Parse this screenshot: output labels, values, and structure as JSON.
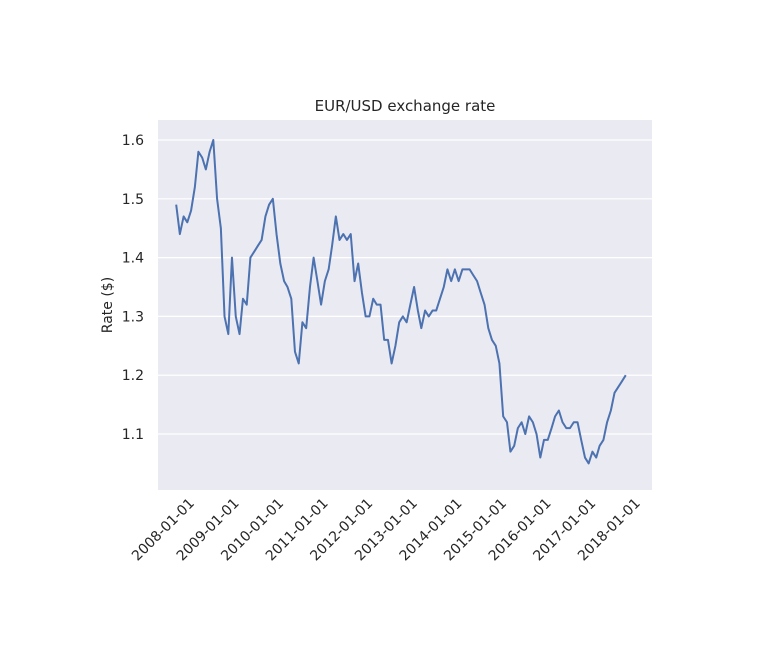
{
  "chart_data": {
    "type": "line",
    "title": "EUR/USD exchange rate",
    "y_label": "Rate ($)",
    "color": "#4c72b0",
    "grid": true,
    "x": [
      "2007-09-01",
      "2007-10-01",
      "2007-11-01",
      "2007-12-01",
      "2008-01-01",
      "2008-02-01",
      "2008-03-01",
      "2008-04-01",
      "2008-05-01",
      "2008-06-01",
      "2008-07-01",
      "2008-08-01",
      "2008-09-01",
      "2008-10-01",
      "2008-11-01",
      "2008-12-01",
      "2009-01-01",
      "2009-02-01",
      "2009-03-01",
      "2009-04-01",
      "2009-05-01",
      "2009-06-01",
      "2009-07-01",
      "2009-08-01",
      "2009-09-01",
      "2009-10-01",
      "2009-11-01",
      "2009-12-01",
      "2010-01-01",
      "2010-02-01",
      "2010-03-01",
      "2010-04-01",
      "2010-05-01",
      "2010-06-01",
      "2010-07-01",
      "2010-08-01",
      "2010-09-01",
      "2010-10-01",
      "2010-11-01",
      "2010-12-01",
      "2011-01-01",
      "2011-02-01",
      "2011-03-01",
      "2011-04-01",
      "2011-05-01",
      "2011-06-01",
      "2011-07-01",
      "2011-08-01",
      "2011-09-01",
      "2011-10-01",
      "2011-11-01",
      "2011-12-01",
      "2012-01-01",
      "2012-02-01",
      "2012-03-01",
      "2012-04-01",
      "2012-05-01",
      "2012-06-01",
      "2012-07-01",
      "2012-08-01",
      "2012-09-01",
      "2012-10-01",
      "2012-11-01",
      "2012-12-01",
      "2013-01-01",
      "2013-02-01",
      "2013-03-01",
      "2013-04-01",
      "2013-05-01",
      "2013-06-01",
      "2013-07-01",
      "2013-08-01",
      "2013-09-01",
      "2013-10-01",
      "2013-11-01",
      "2013-12-01",
      "2014-01-01",
      "2014-02-01",
      "2014-03-01",
      "2014-04-01",
      "2014-05-01",
      "2014-06-01",
      "2014-07-01",
      "2014-08-01",
      "2014-09-01",
      "2014-10-01",
      "2014-11-01",
      "2014-12-01",
      "2015-01-01",
      "2015-02-01",
      "2015-03-01",
      "2015-04-01",
      "2015-05-01",
      "2015-06-01",
      "2015-07-01",
      "2015-08-01",
      "2015-09-01",
      "2015-10-01",
      "2015-11-01",
      "2015-12-01",
      "2016-01-01",
      "2016-02-01",
      "2016-03-01",
      "2016-04-01",
      "2016-05-01",
      "2016-06-01",
      "2016-07-01",
      "2016-08-01",
      "2016-09-01",
      "2016-10-01",
      "2016-11-01",
      "2016-12-01",
      "2017-01-01",
      "2017-02-01",
      "2017-03-01",
      "2017-04-01",
      "2017-05-01",
      "2017-06-01",
      "2017-07-01",
      "2017-08-01",
      "2017-09-01",
      "2017-10-01"
    ],
    "values": [
      1.49,
      1.44,
      1.47,
      1.46,
      1.48,
      1.52,
      1.58,
      1.57,
      1.55,
      1.58,
      1.6,
      1.5,
      1.45,
      1.3,
      1.27,
      1.4,
      1.3,
      1.27,
      1.33,
      1.32,
      1.4,
      1.41,
      1.42,
      1.43,
      1.47,
      1.49,
      1.5,
      1.44,
      1.39,
      1.36,
      1.35,
      1.33,
      1.24,
      1.22,
      1.29,
      1.28,
      1.35,
      1.4,
      1.36,
      1.32,
      1.36,
      1.38,
      1.42,
      1.47,
      1.43,
      1.44,
      1.43,
      1.44,
      1.36,
      1.39,
      1.34,
      1.3,
      1.3,
      1.33,
      1.32,
      1.32,
      1.26,
      1.26,
      1.22,
      1.25,
      1.29,
      1.3,
      1.29,
      1.32,
      1.35,
      1.31,
      1.28,
      1.31,
      1.3,
      1.31,
      1.31,
      1.33,
      1.35,
      1.38,
      1.36,
      1.38,
      1.36,
      1.38,
      1.38,
      1.38,
      1.37,
      1.36,
      1.34,
      1.32,
      1.28,
      1.26,
      1.25,
      1.22,
      1.13,
      1.12,
      1.07,
      1.08,
      1.11,
      1.12,
      1.1,
      1.13,
      1.12,
      1.1,
      1.06,
      1.09,
      1.09,
      1.11,
      1.13,
      1.14,
      1.12,
      1.11,
      1.11,
      1.12,
      1.12,
      1.09,
      1.06,
      1.05,
      1.07,
      1.06,
      1.08,
      1.09,
      1.12,
      1.14,
      1.17,
      1.18,
      1.19,
      1.2
    ],
    "xlim": [
      "2007-04-05",
      "2018-05-04"
    ],
    "xticks": [
      "2008-01-01",
      "2009-01-01",
      "2010-01-01",
      "2011-01-01",
      "2012-01-01",
      "2013-01-01",
      "2014-01-01",
      "2015-01-01",
      "2016-01-01",
      "2017-01-01",
      "2018-01-01"
    ],
    "ylim": [
      1.0048,
      1.634
    ],
    "yticks": [
      1.1,
      1.2,
      1.3,
      1.4,
      1.5,
      1.6
    ]
  }
}
